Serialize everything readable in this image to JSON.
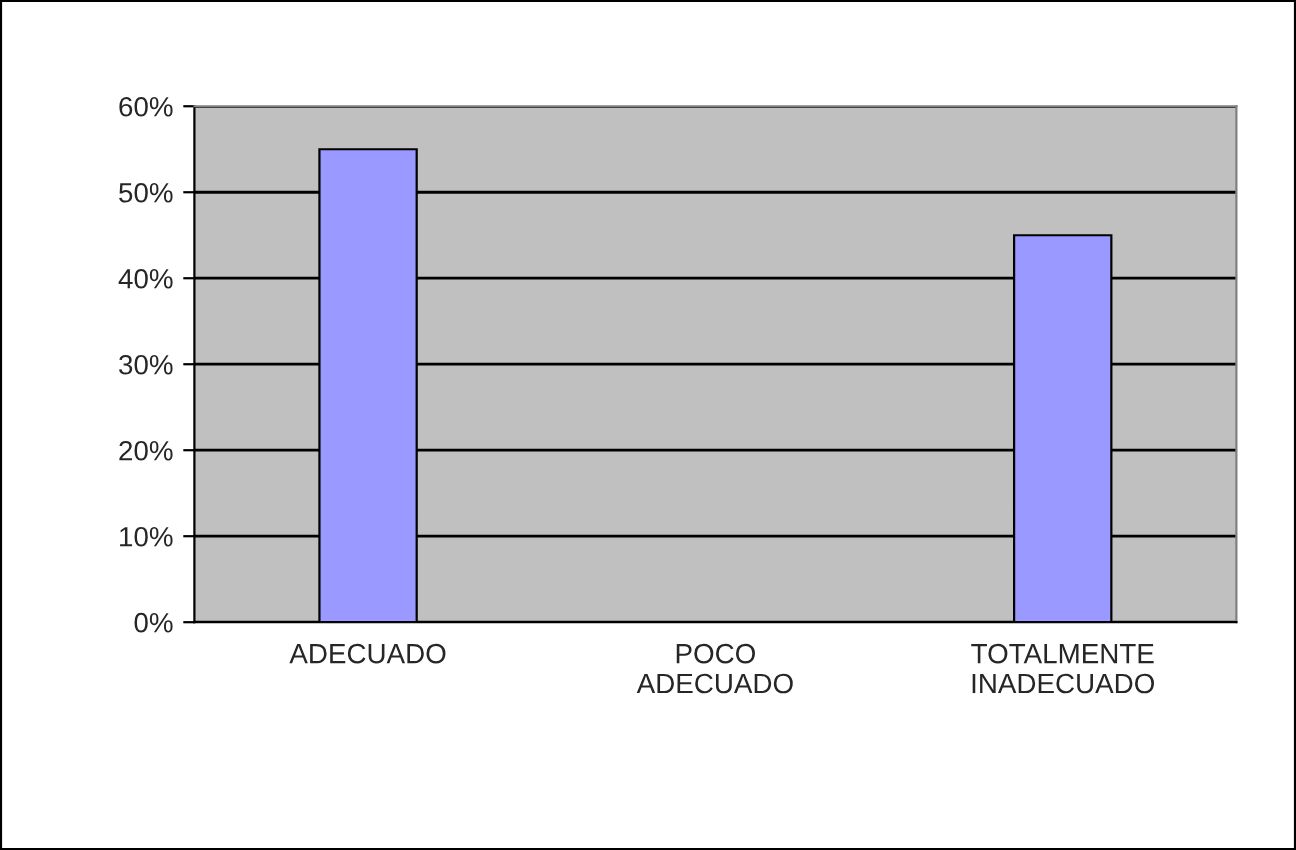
{
  "chart_data": {
    "type": "bar",
    "categories": [
      "ADECUADO",
      "POCO\nADECUADO",
      "TOTALMENTE\nINADECUADO"
    ],
    "values": [
      55,
      0,
      45
    ],
    "color": "#9999ff",
    "ylim": [
      0,
      60
    ],
    "yticks": [
      {
        "value": 0,
        "label": "0%"
      },
      {
        "value": 10,
        "label": "10%"
      },
      {
        "value": 20,
        "label": "20%"
      },
      {
        "value": 30,
        "label": "30%"
      },
      {
        "value": 40,
        "label": "40%"
      },
      {
        "value": 50,
        "label": "50%"
      },
      {
        "value": 60,
        "label": "60%"
      }
    ],
    "grid": "y",
    "legend": false
  }
}
